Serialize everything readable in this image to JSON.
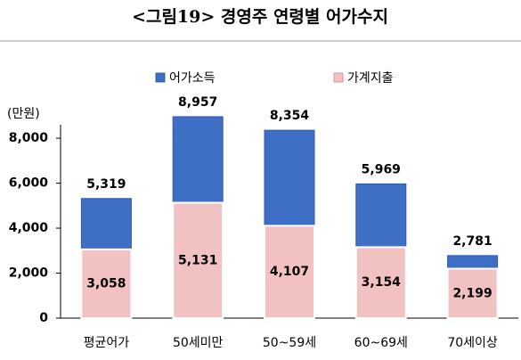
{
  "chart_data": {
    "type": "overlapped_bar",
    "title": "<그림19> 경영주 연령별 어가수지",
    "y_label": "(만원)",
    "categories": [
      "평균어가",
      "50세미만",
      "50~59세",
      "60~69세",
      "70세이상"
    ],
    "series": [
      {
        "name": "어가소득",
        "color": "#3f6fc4",
        "values": [
          5319,
          8957,
          8354,
          5969,
          2781
        ],
        "value_labels": [
          "5,319",
          "8,957",
          "8,354",
          "5,969",
          "2,781"
        ]
      },
      {
        "name": "가계지출",
        "color": "#f2c2c2",
        "values": [
          3058,
          5131,
          4107,
          3154,
          2199
        ],
        "value_labels": [
          "3,058",
          "5,131",
          "4,107",
          "3,154",
          "2,199"
        ]
      }
    ],
    "ylim": [
      0,
      8400
    ],
    "yticks": [
      0,
      {
        "value": 2000,
        "label": "2,000"
      },
      {
        "value": 4000,
        "label": "4,000"
      },
      {
        "value": 6000,
        "label": "6,000"
      },
      {
        "value": 8000,
        "label": "8,000"
      }
    ],
    "grid": false
  }
}
